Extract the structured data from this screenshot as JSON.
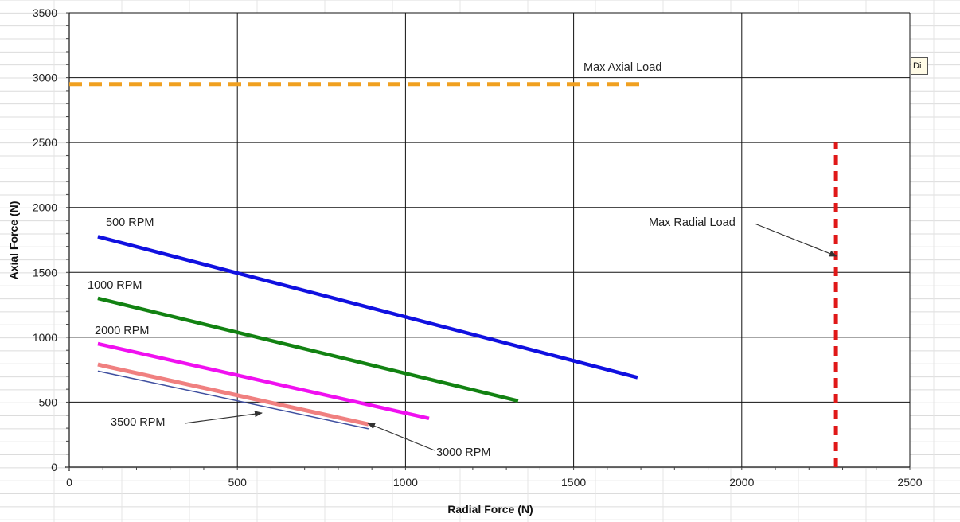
{
  "chart_data": {
    "type": "line",
    "xlabel": "Radial Force (N)",
    "ylabel": "Axial Force (N)",
    "xlim": [
      0,
      2500
    ],
    "ylim": [
      0,
      3500
    ],
    "x_ticks": [
      "0",
      "500",
      "1000",
      "1500",
      "2000",
      "2500"
    ],
    "y_ticks": [
      "0",
      "500",
      "1000",
      "1500",
      "2000",
      "2500",
      "3000",
      "3500"
    ],
    "grid": true,
    "series": [
      {
        "name": "500 RPM",
        "color": "#1010e0",
        "x": [
          85,
          1690
        ],
        "y": [
          1775,
          690
        ]
      },
      {
        "name": "1000 RPM",
        "color": "#128212",
        "x": [
          85,
          1335
        ],
        "y": [
          1300,
          510
        ]
      },
      {
        "name": "2000 RPM",
        "color": "#f010f0",
        "x": [
          85,
          1070
        ],
        "y": [
          950,
          375
        ]
      },
      {
        "name": "3000 RPM",
        "color": "#f08080",
        "x": [
          85,
          890
        ],
        "y": [
          790,
          330
        ]
      },
      {
        "name": "3500 RPM",
        "color": "#4050a0",
        "x": [
          85,
          890
        ],
        "y": [
          740,
          295
        ]
      },
      {
        "name": "Max Axial Load",
        "color": "#f0a020",
        "x": [
          0,
          1700
        ],
        "y": [
          2950,
          2950
        ]
      },
      {
        "name": "Max Radial Load",
        "color": "#e01818",
        "x": [
          2280,
          2280
        ],
        "y": [
          0,
          2500
        ]
      }
    ],
    "annotations": [
      "500 RPM",
      "1000 RPM",
      "2000 RPM",
      "3000 RPM",
      "3500 RPM",
      "Max Axial Load",
      "Max Radial Load"
    ],
    "partial_label": "Di"
  }
}
